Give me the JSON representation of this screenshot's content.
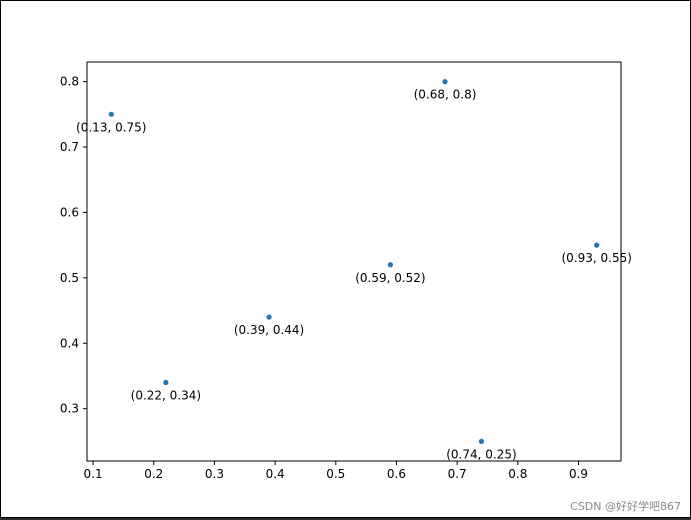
{
  "chart_data": {
    "type": "scatter",
    "title": "",
    "xlabel": "",
    "ylabel": "",
    "xlim": [
      0.09,
      0.97
    ],
    "ylim": [
      0.22,
      0.83
    ],
    "xticks": [
      0.1,
      0.2,
      0.3,
      0.4,
      0.5,
      0.6,
      0.7,
      0.8,
      0.9
    ],
    "xtick_labels": [
      "0.1",
      "0.2",
      "0.3",
      "0.4",
      "0.5",
      "0.6",
      "0.7",
      "0.8",
      "0.9"
    ],
    "yticks": [
      0.3,
      0.4,
      0.5,
      0.6,
      0.7,
      0.8
    ],
    "ytick_labels": [
      "0.3",
      "0.4",
      "0.5",
      "0.6",
      "0.7",
      "0.8"
    ],
    "grid": false,
    "marker_color": "#1f77b4",
    "points": [
      {
        "x": 0.13,
        "y": 0.75,
        "label": "(0.13, 0.75)"
      },
      {
        "x": 0.22,
        "y": 0.34,
        "label": "(0.22, 0.34)"
      },
      {
        "x": 0.39,
        "y": 0.44,
        "label": "(0.39, 0.44)"
      },
      {
        "x": 0.59,
        "y": 0.52,
        "label": "(0.59, 0.52)"
      },
      {
        "x": 0.68,
        "y": 0.8,
        "label": "(0.68, 0.8)"
      },
      {
        "x": 0.74,
        "y": 0.25,
        "label": "(0.74, 0.25)"
      },
      {
        "x": 0.93,
        "y": 0.55,
        "label": "(0.93, 0.55)"
      }
    ]
  },
  "watermark": {
    "text": "CSDN @好好学吧867"
  }
}
